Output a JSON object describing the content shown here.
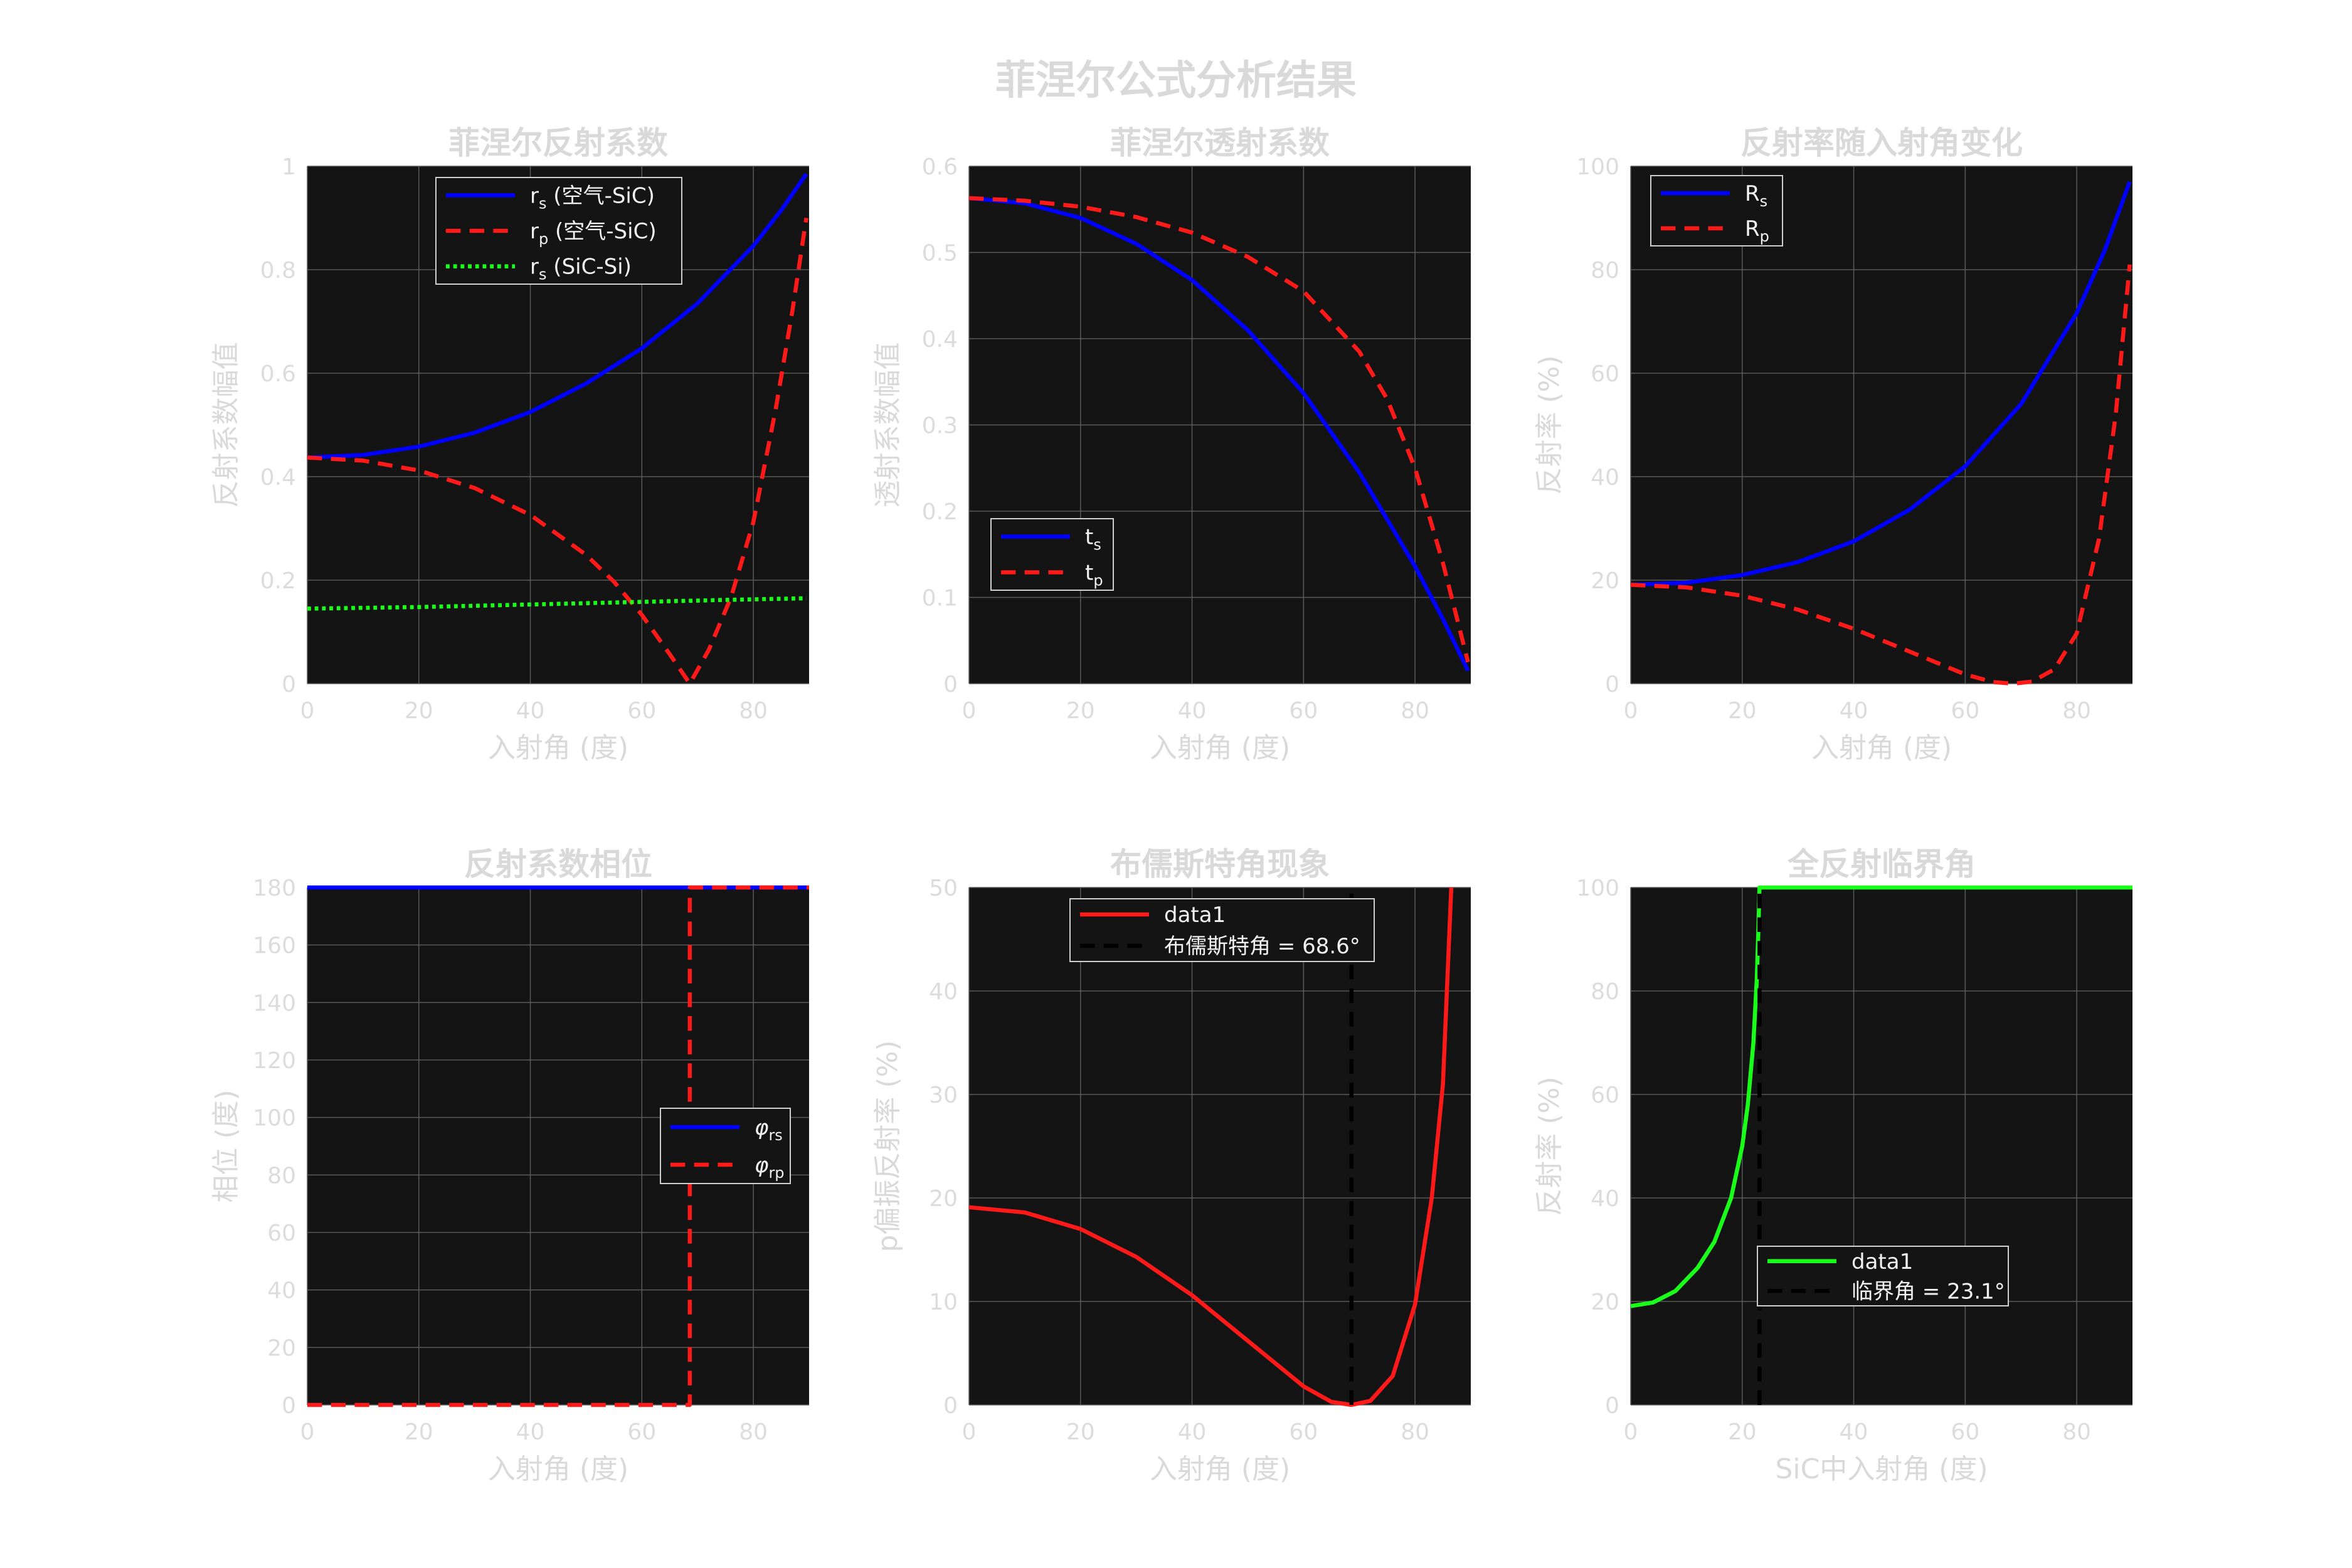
{
  "figure": {
    "title": "菲涅尔公式分析结果"
  },
  "colors": {
    "background": "#ffffff",
    "axes_bg": "#141414",
    "grid": "#5a5a5a",
    "label": "#d9d9d9",
    "tick": "#dcdcdc",
    "legend_bg": "#141414",
    "legend_border": "#d0d0d0",
    "legend_text": "#f2f2f2",
    "blue": "#0000ff",
    "red": "#ff1a1a",
    "green": "#1aff1a",
    "black": "#000000"
  },
  "chart_data": [
    {
      "id": "reflection-coeff",
      "type": "line",
      "title": "菲涅尔反射系数",
      "xlabel": "入射角 (度)",
      "ylabel": "反射系数幅值",
      "xlim": [
        0,
        90
      ],
      "ylim": [
        0,
        1
      ],
      "xticks": [
        0,
        20,
        40,
        60,
        80
      ],
      "yticks": [
        0,
        0.2,
        0.4,
        0.6,
        0.8,
        1
      ],
      "ytick_labels": [
        "0",
        "0.2",
        "0.4",
        "0.6",
        "0.8",
        "1"
      ],
      "grid": true,
      "legend_position": "top-center",
      "series": [
        {
          "name": "rs (空气-SiC)",
          "legend_main": "r",
          "legend_sub": "s",
          "legend_rest": " (空气-SiC)",
          "color": "blue",
          "style": "solid",
          "x": [
            0,
            10,
            20,
            30,
            40,
            50,
            60,
            70,
            80,
            85,
            89.5
          ],
          "y": [
            0.437,
            0.442,
            0.458,
            0.485,
            0.525,
            0.58,
            0.648,
            0.735,
            0.846,
            0.915,
            0.985
          ]
        },
        {
          "name": "rp (空气-SiC)",
          "legend_main": "r",
          "legend_sub": "p",
          "legend_rest": " (空气-SiC)",
          "color": "red",
          "style": "dashed",
          "x": [
            0,
            10,
            20,
            30,
            40,
            50,
            55,
            60,
            65,
            68.6,
            72,
            76,
            80,
            84,
            87,
            89.5
          ],
          "y": [
            0.437,
            0.431,
            0.412,
            0.378,
            0.326,
            0.249,
            0.197,
            0.133,
            0.057,
            0,
            0.065,
            0.167,
            0.312,
            0.53,
            0.72,
            0.9
          ]
        },
        {
          "name": "rs (SiC-Si)",
          "legend_main": "r",
          "legend_sub": "s",
          "legend_rest": " (SiC-Si)",
          "color": "green",
          "style": "dotted",
          "x": [
            0,
            20,
            40,
            60,
            80,
            89.5
          ],
          "y": [
            0.145,
            0.148,
            0.153,
            0.158,
            0.163,
            0.165
          ]
        }
      ]
    },
    {
      "id": "transmission-coeff",
      "type": "line",
      "title": "菲涅尔透射系数",
      "xlabel": "入射角 (度)",
      "ylabel": "透射系数幅值",
      "xlim": [
        0,
        90
      ],
      "ylim": [
        0,
        0.6
      ],
      "xticks": [
        0,
        20,
        40,
        60,
        80
      ],
      "yticks": [
        0,
        0.1,
        0.2,
        0.3,
        0.4,
        0.5,
        0.6
      ],
      "ytick_labels": [
        "0",
        "0.1",
        "0.2",
        "0.3",
        "0.4",
        "0.5",
        "0.6"
      ],
      "grid": true,
      "legend_position": "bottom-left",
      "series": [
        {
          "name": "ts",
          "legend_main": "t",
          "legend_sub": "s",
          "legend_rest": "",
          "color": "blue",
          "style": "solid",
          "x": [
            0,
            10,
            20,
            30,
            40,
            50,
            60,
            70,
            80,
            85,
            89.5
          ],
          "y": [
            0.563,
            0.557,
            0.54,
            0.51,
            0.468,
            0.41,
            0.337,
            0.245,
            0.136,
            0.075,
            0.015
          ]
        },
        {
          "name": "tp",
          "legend_main": "t",
          "legend_sub": "p",
          "legend_rest": "",
          "color": "red",
          "style": "dashed",
          "x": [
            0,
            10,
            20,
            30,
            40,
            50,
            60,
            70,
            75,
            80,
            85,
            89.5
          ],
          "y": [
            0.563,
            0.56,
            0.553,
            0.541,
            0.523,
            0.495,
            0.455,
            0.385,
            0.33,
            0.25,
            0.14,
            0.025
          ]
        }
      ]
    },
    {
      "id": "reflectance",
      "type": "line",
      "title": "反射率随入射角变化",
      "xlabel": "入射角 (度)",
      "ylabel": "反射率 (%)",
      "xlim": [
        0,
        90
      ],
      "ylim": [
        0,
        100
      ],
      "xticks": [
        0,
        20,
        40,
        60,
        80
      ],
      "yticks": [
        0,
        20,
        40,
        60,
        80,
        100
      ],
      "ytick_labels": [
        "0",
        "20",
        "40",
        "60",
        "80",
        "100"
      ],
      "grid": true,
      "legend_position": "top-left",
      "series": [
        {
          "name": "Rs",
          "legend_main": "R",
          "legend_sub": "s",
          "legend_rest": "",
          "color": "blue",
          "style": "solid",
          "x": [
            0,
            10,
            20,
            30,
            40,
            50,
            60,
            70,
            80,
            85,
            89.5
          ],
          "y": [
            19.1,
            19.5,
            21,
            23.5,
            27.5,
            33.6,
            42,
            54,
            71.6,
            83.7,
            97
          ]
        },
        {
          "name": "Rp",
          "legend_main": "R",
          "legend_sub": "p",
          "legend_rest": "",
          "color": "red",
          "style": "dashed",
          "x": [
            0,
            10,
            20,
            30,
            40,
            50,
            60,
            65,
            68.6,
            72,
            76,
            80,
            84,
            87,
            89.5
          ],
          "y": [
            19.1,
            18.6,
            17,
            14.3,
            10.6,
            6.2,
            1.8,
            0.3,
            0,
            0.4,
            2.8,
            9.7,
            28,
            52,
            81
          ]
        }
      ]
    },
    {
      "id": "phase",
      "type": "line",
      "title": "反射系数相位",
      "xlabel": "入射角 (度)",
      "ylabel": "相位 (度)",
      "xlim": [
        0,
        90
      ],
      "ylim": [
        0,
        180
      ],
      "xticks": [
        0,
        20,
        40,
        60,
        80
      ],
      "yticks": [
        0,
        20,
        40,
        60,
        80,
        100,
        120,
        140,
        160,
        180
      ],
      "ytick_labels": [
        "0",
        "20",
        "40",
        "60",
        "80",
        "100",
        "120",
        "140",
        "160",
        "180"
      ],
      "grid": true,
      "legend_position": "right-middle",
      "series": [
        {
          "name": "φrs",
          "legend_main": "φ",
          "legend_sub": "rs",
          "legend_rest": "",
          "color": "blue",
          "style": "solid",
          "x": [
            0,
            90
          ],
          "y": [
            180,
            180
          ]
        },
        {
          "name": "φrp",
          "legend_main": "φ",
          "legend_sub": "rp",
          "legend_rest": "",
          "color": "red",
          "style": "dashed",
          "x": [
            0,
            68.6,
            68.6,
            90
          ],
          "y": [
            0,
            0,
            180,
            180
          ]
        }
      ]
    },
    {
      "id": "brewster",
      "type": "line",
      "title": "布儒斯特角现象",
      "xlabel": "入射角 (度)",
      "ylabel": "p偏振反射率 (%)",
      "xlim": [
        0,
        90
      ],
      "ylim": [
        0,
        50
      ],
      "xticks": [
        0,
        20,
        40,
        60,
        80
      ],
      "yticks": [
        0,
        10,
        20,
        30,
        40,
        50
      ],
      "ytick_labels": [
        "0",
        "10",
        "20",
        "30",
        "40",
        "50"
      ],
      "grid": true,
      "legend_position": "top-center",
      "series": [
        {
          "name": "data1",
          "legend_main": "data1",
          "legend_sub": "",
          "legend_rest": "",
          "color": "red",
          "style": "solid",
          "x": [
            0,
            10,
            20,
            30,
            40,
            50,
            60,
            65,
            68.6,
            72,
            76,
            80,
            83,
            85,
            86.5
          ],
          "y": [
            19.1,
            18.6,
            17,
            14.3,
            10.6,
            6.2,
            1.8,
            0.3,
            0,
            0.4,
            2.8,
            9.7,
            20,
            31,
            50
          ]
        },
        {
          "name": "布儒斯特角 = 68.6°",
          "legend_main": "布儒斯特角 = 68.6°",
          "legend_sub": "",
          "legend_rest": "",
          "color": "black",
          "style": "dashed",
          "x": [
            68.6,
            68.6
          ],
          "y": [
            0,
            50
          ]
        }
      ]
    },
    {
      "id": "critical-angle",
      "type": "line",
      "title": "全反射临界角",
      "xlabel": "SiC中入射角 (度)",
      "ylabel": "反射率 (%)",
      "xlim": [
        0,
        90
      ],
      "ylim": [
        0,
        100
      ],
      "xticks": [
        0,
        20,
        40,
        60,
        80
      ],
      "yticks": [
        0,
        20,
        40,
        60,
        80,
        100
      ],
      "ytick_labels": [
        "0",
        "20",
        "40",
        "60",
        "80",
        "100"
      ],
      "grid": true,
      "legend_position": "bottom-center",
      "series": [
        {
          "name": "data1",
          "legend_main": "data1",
          "legend_sub": "",
          "legend_rest": "",
          "color": "green",
          "style": "solid",
          "x": [
            0,
            4,
            8,
            12,
            15,
            18,
            20,
            21,
            22,
            22.6,
            22.9,
            23.1,
            90
          ],
          "y": [
            19.1,
            19.8,
            22,
            26.5,
            31.5,
            40,
            50,
            58,
            70,
            82,
            92,
            100,
            100
          ]
        },
        {
          "name": "临界角 = 23.1°",
          "legend_main": "临界角 = 23.1°",
          "legend_sub": "",
          "legend_rest": "",
          "color": "black",
          "style": "dashed",
          "x": [
            23.1,
            23.1
          ],
          "y": [
            0,
            100
          ]
        }
      ]
    }
  ]
}
